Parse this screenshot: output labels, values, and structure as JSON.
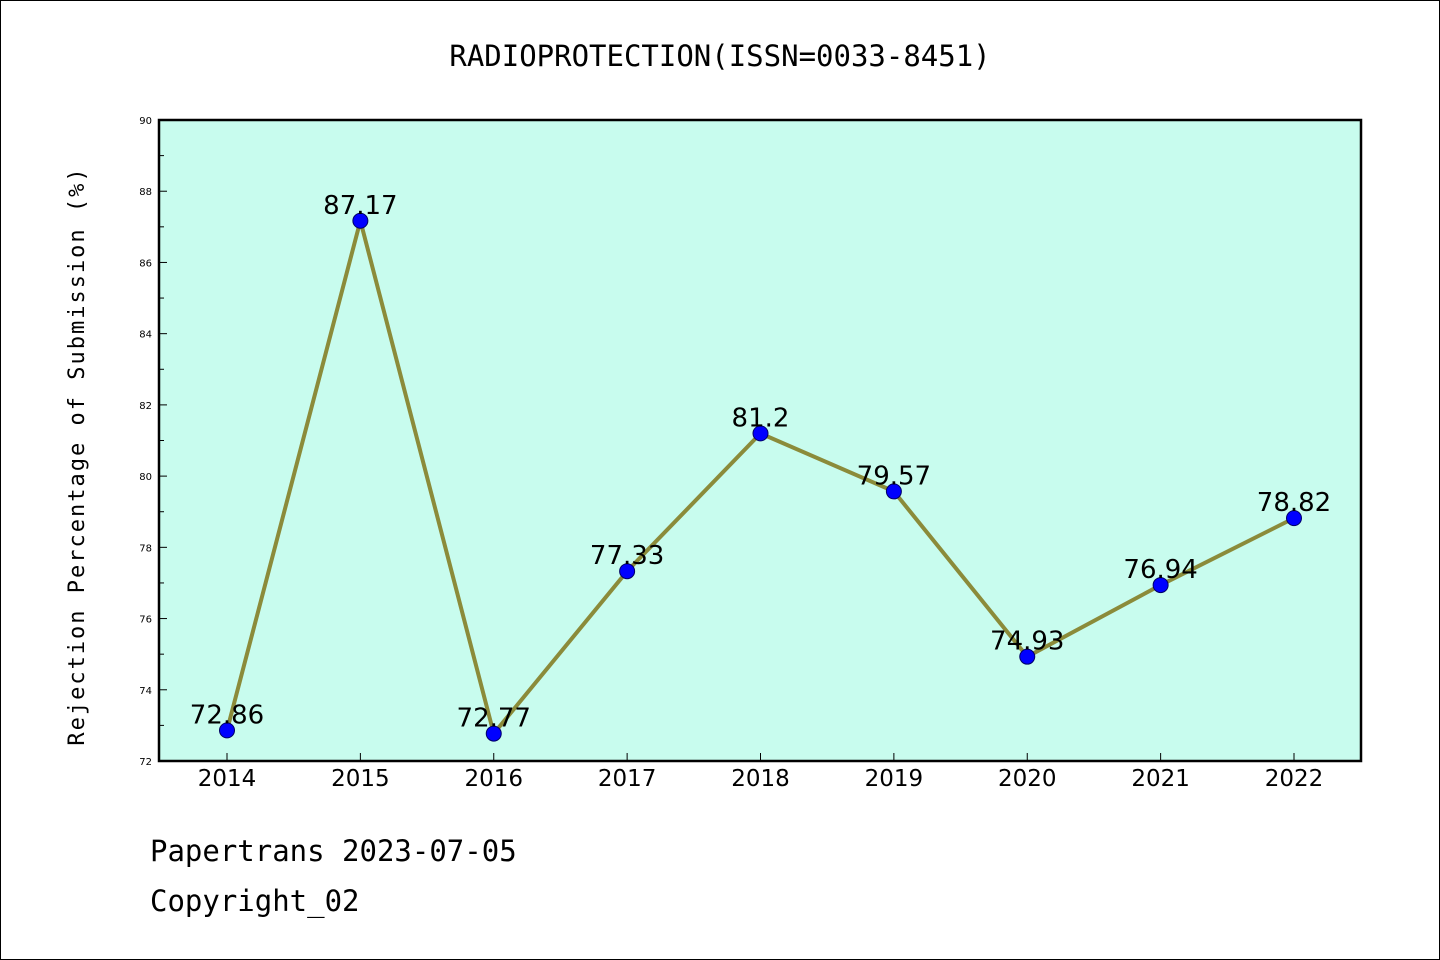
{
  "chart_data": {
    "type": "line",
    "title": "RADIOPROTECTION(ISSN=0033-8451)",
    "xlabel": "",
    "ylabel": "Rejection Percentage of Submission (%)",
    "categories": [
      "2014",
      "2015",
      "2016",
      "2017",
      "2018",
      "2019",
      "2020",
      "2021",
      "2022"
    ],
    "series": [
      {
        "values": [
          72.86,
          87.17,
          72.77,
          77.33,
          81.2,
          79.57,
          74.93,
          76.94,
          78.82
        ],
        "labels": [
          "72.86",
          "87.17",
          "72.77",
          "77.33",
          "81.2",
          "79.57",
          "74.93",
          "76.94",
          "78.82"
        ]
      }
    ],
    "ylim": [
      72,
      90
    ],
    "yticks": [
      "72",
      "74",
      "76",
      "78",
      "80",
      "82",
      "84",
      "86",
      "88",
      "90"
    ],
    "grid": false,
    "legend": "none",
    "colors": {
      "plot_background": "#c8fcee",
      "line": "#8b8b3a",
      "marker": "#0000ff"
    }
  },
  "footer": {
    "line1": "Papertrans 2023-07-05",
    "line2": "Copyright_02"
  }
}
